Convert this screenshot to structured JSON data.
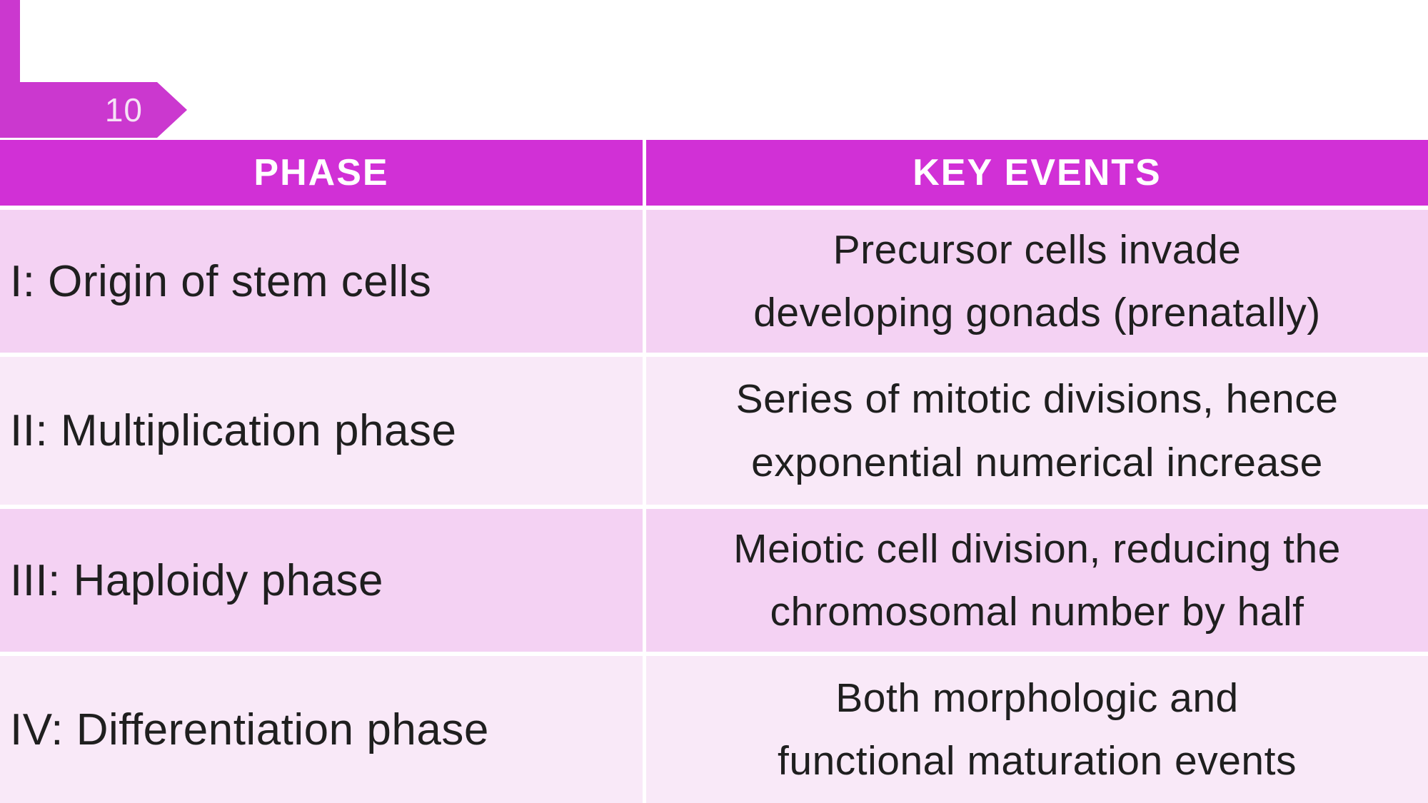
{
  "slide": {
    "number": "10",
    "colors": {
      "accent_header": "#d130d6",
      "accent_shape": "#cb38cf",
      "row_odd": "#f4d2f3",
      "row_even": "#f9e9f8",
      "header_text": "#ffffff",
      "body_text": "#1f1f1f"
    }
  },
  "table": {
    "headers": [
      {
        "label": "PHASE"
      },
      {
        "label": "KEY EVENTS"
      }
    ],
    "rows": [
      {
        "phase": "I: Origin of stem cells",
        "key_events": "Precursor cells invade developing gonads (prenatally)",
        "key_events_lines": [
          "Precursor cells invade",
          "developing gonads (prenatally)"
        ]
      },
      {
        "phase": "II: Multiplication phase",
        "key_events": "Series of mitotic divisions, hence exponential numerical increase",
        "key_events_lines": [
          "Series of mitotic divisions, hence",
          "exponential numerical increase"
        ]
      },
      {
        "phase": "III: Haploidy phase",
        "key_events": "Meiotic cell division, reducing the chromosomal number by half",
        "key_events_lines": [
          "Meiotic cell division, reducing the",
          "chromosomal number by half"
        ]
      },
      {
        "phase": "IV: Differentiation phase",
        "key_events": "Both morphologic and functional maturation events",
        "key_events_lines": [
          "Both morphologic and",
          "functional maturation events"
        ]
      }
    ]
  }
}
